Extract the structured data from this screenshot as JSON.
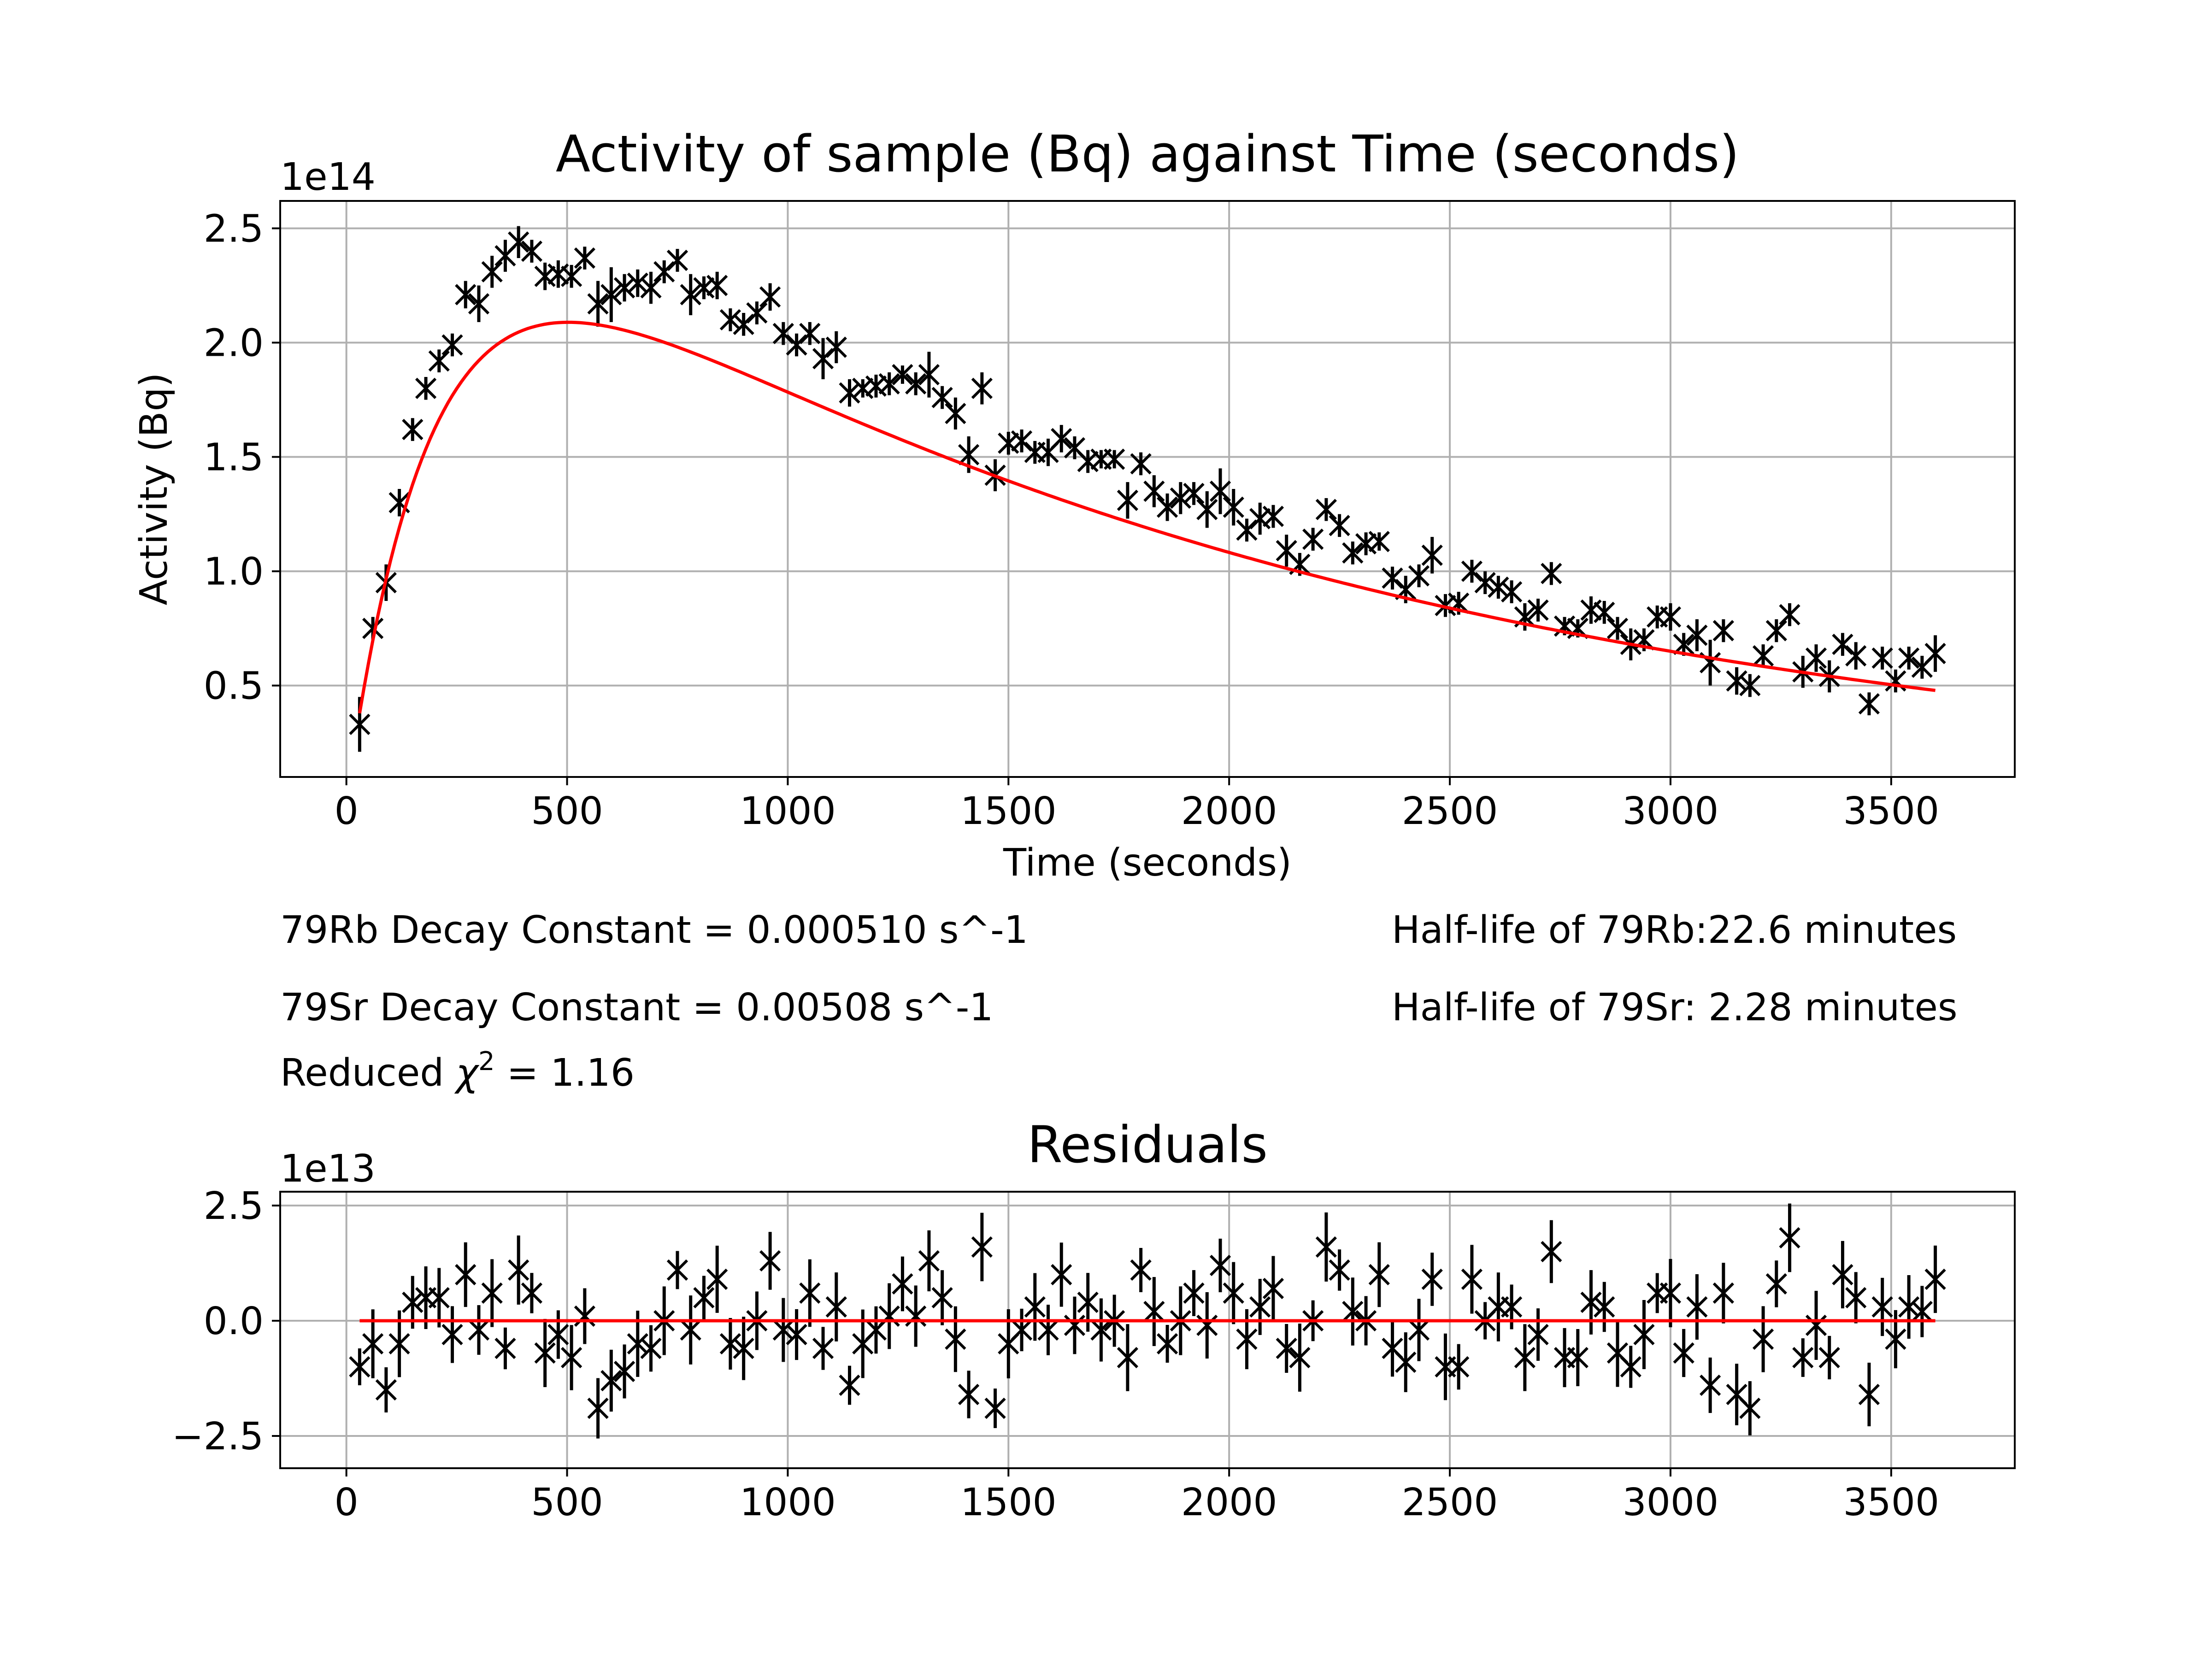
{
  "colors": {
    "data": "#000000",
    "fit": "#ff0000",
    "grid": "#b0b0b0",
    "frame": "#000000"
  },
  "annotations": {
    "rb_decay": "79Rb Decay Constant = 0.000510 s^-1",
    "sr_decay": "79Sr Decay Constant = 0.00508 s^-1",
    "chi_prefix": "Reduced ",
    "chi_symbol": "χ",
    "chi_exp": "2",
    "chi_value": " = 1.16",
    "rb_halflife": "Half-life of 79Rb:22.6 minutes",
    "sr_halflife": "Half-life of 79Sr: 2.28 minutes"
  },
  "chart_data": [
    {
      "type": "scatter",
      "title": "Activity of sample (Bq) against Time (seconds)",
      "xlabel": "Time (seconds)",
      "ylabel": "Activity (Bq)",
      "offset_label": "1e14",
      "xlim": [
        -150,
        3780
      ],
      "ylim": [
        0.1,
        2.62
      ],
      "xticks": [
        0,
        500,
        1000,
        1500,
        2000,
        2500,
        3000,
        3500
      ],
      "xtick_labels": [
        "0",
        "500",
        "1000",
        "1500",
        "2000",
        "2500",
        "3000",
        "3500"
      ],
      "yticks": [
        0.5,
        1.0,
        1.5,
        2.0,
        2.5
      ],
      "ytick_labels": [
        "0.5",
        "1.0",
        "1.5",
        "2.0",
        "2.5"
      ],
      "grid": true,
      "marker": "x with error bars",
      "fit_label": "red fit curve",
      "fit_model": {
        "A_scale": 2.7,
        "lambda_rb": 0.00051,
        "lambda_sr": 0.00508,
        "t_start": 30,
        "t_end": 3600
      },
      "x": [
        30,
        60,
        90,
        120,
        150,
        180,
        210,
        240,
        270,
        300,
        330,
        360,
        390,
        420,
        450,
        480,
        510,
        540,
        570,
        600,
        630,
        660,
        690,
        720,
        750,
        780,
        810,
        840,
        870,
        900,
        930,
        960,
        990,
        1020,
        1050,
        1080,
        1110,
        1140,
        1170,
        1200,
        1230,
        1260,
        1290,
        1320,
        1350,
        1380,
        1410,
        1440,
        1470,
        1500,
        1530,
        1560,
        1590,
        1620,
        1650,
        1680,
        1710,
        1740,
        1770,
        1800,
        1830,
        1860,
        1890,
        1920,
        1950,
        1980,
        2010,
        2040,
        2070,
        2100,
        2130,
        2160,
        2190,
        2220,
        2250,
        2280,
        2310,
        2340,
        2370,
        2400,
        2430,
        2460,
        2490,
        2520,
        2550,
        2580,
        2610,
        2640,
        2670,
        2700,
        2730,
        2760,
        2790,
        2820,
        2850,
        2880,
        2910,
        2940,
        2970,
        3000,
        3030,
        3060,
        3090,
        3120,
        3150,
        3180,
        3210,
        3240,
        3270,
        3300,
        3330,
        3360,
        3390,
        3420,
        3450,
        3480,
        3510,
        3540,
        3570,
        3600
      ],
      "y": [
        0.33,
        0.75,
        0.95,
        1.3,
        1.62,
        1.8,
        1.92,
        1.99,
        2.21,
        2.17,
        2.31,
        2.38,
        2.44,
        2.4,
        2.29,
        2.3,
        2.29,
        2.37,
        2.17,
        2.21,
        2.24,
        2.26,
        2.24,
        2.31,
        2.36,
        2.21,
        2.24,
        2.25,
        2.1,
        2.08,
        2.13,
        2.2,
        2.04,
        1.99,
        2.04,
        1.93,
        1.98,
        1.78,
        1.8,
        1.81,
        1.82,
        1.86,
        1.82,
        1.86,
        1.76,
        1.69,
        1.51,
        1.8,
        1.42,
        1.56,
        1.57,
        1.52,
        1.52,
        1.58,
        1.54,
        1.48,
        1.49,
        1.49,
        1.31,
        1.47,
        1.35,
        1.28,
        1.32,
        1.34,
        1.27,
        1.35,
        1.28,
        1.18,
        1.23,
        1.24,
        1.09,
        1.03,
        1.14,
        1.27,
        1.2,
        1.08,
        1.12,
        1.13,
        0.97,
        0.92,
        0.98,
        1.07,
        0.85,
        0.86,
        1.0,
        0.95,
        0.93,
        0.91,
        0.8,
        0.83,
        0.99,
        0.76,
        0.75,
        0.83,
        0.82,
        0.75,
        0.68,
        0.7,
        0.8,
        0.8,
        0.68,
        0.72,
        0.6,
        0.74,
        0.52,
        0.5,
        0.63,
        0.74,
        0.81,
        0.56,
        0.62,
        0.54,
        0.68,
        0.63,
        0.42,
        0.62,
        0.52,
        0.62,
        0.58,
        0.64
      ],
      "yerr": [
        0.12,
        0.05,
        0.08,
        0.06,
        0.05,
        0.05,
        0.05,
        0.05,
        0.06,
        0.08,
        0.07,
        0.07,
        0.07,
        0.05,
        0.06,
        0.06,
        0.05,
        0.05,
        0.1,
        0.12,
        0.06,
        0.06,
        0.07,
        0.05,
        0.05,
        0.09,
        0.05,
        0.06,
        0.05,
        0.05,
        0.05,
        0.06,
        0.05,
        0.05,
        0.05,
        0.09,
        0.07,
        0.06,
        0.04,
        0.05,
        0.05,
        0.04,
        0.05,
        0.1,
        0.05,
        0.07,
        0.08,
        0.07,
        0.07,
        0.05,
        0.05,
        0.05,
        0.06,
        0.06,
        0.05,
        0.05,
        0.04,
        0.04,
        0.08,
        0.05,
        0.07,
        0.06,
        0.07,
        0.05,
        0.08,
        0.1,
        0.08,
        0.05,
        0.07,
        0.05,
        0.07,
        0.05,
        0.05,
        0.05,
        0.05,
        0.05,
        0.05,
        0.04,
        0.05,
        0.06,
        0.05,
        0.08,
        0.05,
        0.05,
        0.05,
        0.05,
        0.05,
        0.05,
        0.06,
        0.05,
        0.05,
        0.04,
        0.04,
        0.06,
        0.05,
        0.05,
        0.07,
        0.05,
        0.05,
        0.06,
        0.05,
        0.07,
        0.1,
        0.05,
        0.06,
        0.05,
        0.05,
        0.05,
        0.05,
        0.07,
        0.06,
        0.07,
        0.05,
        0.06,
        0.05,
        0.05,
        0.05,
        0.05,
        0.05,
        0.08
      ]
    },
    {
      "type": "scatter",
      "title": "Residuals",
      "xlabel": "",
      "ylabel": "",
      "offset_label": "1e13",
      "xlim": [
        -150,
        3780
      ],
      "ylim": [
        -3.2,
        2.8
      ],
      "xticks": [
        0,
        500,
        1000,
        1500,
        2000,
        2500,
        3000,
        3500
      ],
      "xtick_labels": [
        "0",
        "500",
        "1000",
        "1500",
        "2000",
        "2500",
        "3000",
        "3500"
      ],
      "yticks": [
        -2.5,
        0.0,
        2.5
      ],
      "ytick_labels": [
        "−2.5",
        "0.0",
        "2.5"
      ],
      "grid": true,
      "marker": "x with error bars",
      "zero_line": {
        "x_start": 30,
        "x_end": 3600,
        "y": 0
      },
      "x": [
        30,
        60,
        90,
        120,
        150,
        180,
        210,
        240,
        270,
        300,
        330,
        360,
        390,
        420,
        450,
        480,
        510,
        540,
        570,
        600,
        630,
        660,
        690,
        720,
        750,
        780,
        810,
        840,
        870,
        900,
        930,
        960,
        990,
        1020,
        1050,
        1080,
        1110,
        1140,
        1170,
        1200,
        1230,
        1260,
        1290,
        1320,
        1350,
        1380,
        1410,
        1440,
        1470,
        1500,
        1530,
        1560,
        1590,
        1620,
        1650,
        1680,
        1710,
        1740,
        1770,
        1800,
        1830,
        1860,
        1890,
        1920,
        1950,
        1980,
        2010,
        2040,
        2070,
        2100,
        2130,
        2160,
        2190,
        2220,
        2250,
        2280,
        2310,
        2340,
        2370,
        2400,
        2430,
        2460,
        2490,
        2520,
        2550,
        2580,
        2610,
        2640,
        2670,
        2700,
        2730,
        2760,
        2790,
        2820,
        2850,
        2880,
        2910,
        2940,
        2970,
        3000,
        3030,
        3060,
        3090,
        3120,
        3150,
        3180,
        3210,
        3240,
        3270,
        3300,
        3330,
        3360,
        3390,
        3420,
        3450,
        3480,
        3510,
        3540,
        3570,
        3600
      ],
      "y": [
        -1.0,
        -0.5,
        -1.5,
        -0.5,
        0.4,
        0.5,
        0.5,
        -0.3,
        1.0,
        -0.2,
        0.6,
        -0.6,
        1.1,
        0.6,
        -0.7,
        -0.3,
        -0.8,
        0.1,
        -1.9,
        -1.3,
        -1.1,
        -0.5,
        -0.6,
        0.0,
        1.1,
        -0.2,
        0.5,
        0.9,
        -0.5,
        -0.6,
        0.0,
        1.3,
        -0.2,
        -0.3,
        0.6,
        -0.6,
        0.3,
        -1.4,
        -0.5,
        -0.2,
        0.1,
        0.8,
        0.1,
        1.3,
        0.5,
        -0.4,
        -1.6,
        1.6,
        -1.9,
        -0.5,
        -0.2,
        0.3,
        -0.2,
        1.0,
        -0.1,
        0.4,
        -0.2,
        0.0,
        -0.8,
        1.1,
        0.2,
        -0.5,
        0.0,
        0.6,
        -0.1,
        1.2,
        0.6,
        -0.4,
        0.3,
        0.7,
        -0.6,
        -0.8,
        0.0,
        1.6,
        1.1,
        0.2,
        0.0,
        1.0,
        -0.6,
        -0.9,
        -0.2,
        0.9,
        -1.0,
        -1.0,
        0.9,
        0.0,
        0.3,
        0.3,
        -0.8,
        -0.3,
        1.5,
        -0.8,
        -0.8,
        0.4,
        0.3,
        -0.7,
        -1.0,
        -0.3,
        0.6,
        0.6,
        -0.7,
        0.3,
        -1.4,
        0.6,
        -1.6,
        -1.9,
        -0.4,
        0.8,
        1.8,
        -0.8,
        -0.1,
        -0.8,
        1.0,
        0.5,
        -1.6,
        0.3,
        -0.4,
        0.3,
        0.2,
        0.9
      ]
    }
  ]
}
